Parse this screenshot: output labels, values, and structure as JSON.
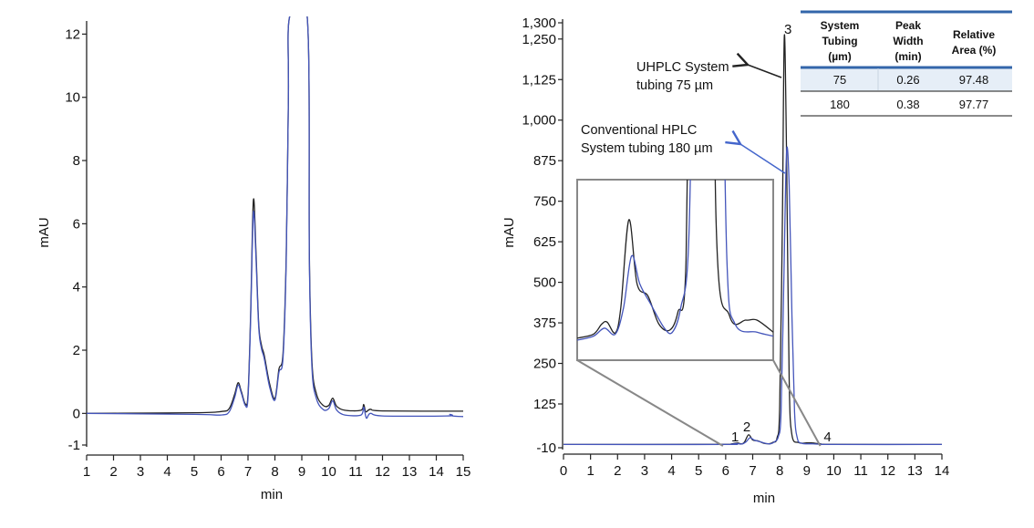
{
  "chart_data": [
    {
      "type": "line",
      "xlabel": "min",
      "ylabel": "mAU",
      "xlim": [
        1,
        15
      ],
      "ylim": [
        -1,
        12.3
      ],
      "xticks": [
        "1",
        "2",
        "3",
        "4",
        "5",
        "6",
        "7",
        "8",
        "9",
        "10",
        "11",
        "12",
        "13",
        "14",
        "15"
      ],
      "yticks": [
        "-1",
        "0",
        "2",
        "4",
        "6",
        "8",
        "10",
        "12"
      ],
      "grid": false,
      "series": [
        {
          "color": "#222222",
          "points": [
            [
              1,
              0
            ],
            [
              5,
              0.02
            ],
            [
              6,
              0.06
            ],
            [
              6.3,
              0.15
            ],
            [
              6.5,
              0.6
            ],
            [
              6.63,
              0.97
            ],
            [
              6.75,
              0.7
            ],
            [
              6.9,
              0.3
            ],
            [
              7.0,
              0.6
            ],
            [
              7.1,
              3.2
            ],
            [
              7.2,
              6.75
            ],
            [
              7.3,
              5.0
            ],
            [
              7.4,
              2.8
            ],
            [
              7.5,
              2.15
            ],
            [
              7.6,
              1.85
            ],
            [
              7.8,
              0.95
            ],
            [
              8.0,
              0.47
            ],
            [
              8.15,
              1.4
            ],
            [
              8.3,
              1.9
            ],
            [
              8.42,
              5
            ],
            [
              8.5,
              10
            ],
            [
              8.55,
              13
            ],
            [
              9.2,
              13
            ],
            [
              9.28,
              5
            ],
            [
              9.38,
              1.6
            ],
            [
              9.55,
              0.6
            ],
            [
              9.8,
              0.25
            ],
            [
              10.0,
              0.25
            ],
            [
              10.15,
              0.48
            ],
            [
              10.3,
              0.22
            ],
            [
              10.6,
              0.1
            ],
            [
              11.2,
              0.1
            ],
            [
              11.3,
              0.28
            ],
            [
              11.38,
              0.05
            ],
            [
              11.55,
              0.13
            ],
            [
              12,
              0.08
            ],
            [
              15,
              0.07
            ]
          ]
        },
        {
          "color": "#4455bb",
          "points": [
            [
              1,
              0
            ],
            [
              5,
              -0.03
            ],
            [
              6,
              -0.05
            ],
            [
              6.3,
              0.05
            ],
            [
              6.5,
              0.5
            ],
            [
              6.63,
              0.9
            ],
            [
              6.75,
              0.65
            ],
            [
              6.9,
              0.25
            ],
            [
              7.0,
              0.5
            ],
            [
              7.1,
              3.0
            ],
            [
              7.2,
              6.35
            ],
            [
              7.3,
              4.8
            ],
            [
              7.4,
              2.7
            ],
            [
              7.5,
              2.05
            ],
            [
              7.6,
              1.75
            ],
            [
              7.8,
              0.85
            ],
            [
              8.0,
              0.42
            ],
            [
              8.15,
              1.3
            ],
            [
              8.3,
              1.75
            ],
            [
              8.42,
              4.8
            ],
            [
              8.5,
              10
            ],
            [
              8.55,
              13
            ],
            [
              9.2,
              13
            ],
            [
              9.28,
              4.8
            ],
            [
              9.38,
              1.4
            ],
            [
              9.55,
              0.45
            ],
            [
              9.8,
              0.12
            ],
            [
              10.0,
              0.15
            ],
            [
              10.15,
              0.4
            ],
            [
              10.3,
              0.1
            ],
            [
              10.6,
              -0.05
            ],
            [
              11.2,
              -0.05
            ],
            [
              11.3,
              0.2
            ],
            [
              11.4,
              -0.15
            ],
            [
              11.55,
              0.0
            ],
            [
              12,
              -0.08
            ],
            [
              14.4,
              -0.08
            ],
            [
              14.5,
              -0.03
            ],
            [
              14.6,
              -0.08
            ],
            [
              15,
              -0.1
            ]
          ]
        }
      ]
    },
    {
      "type": "line",
      "xlabel": "min",
      "ylabel": "mAU",
      "xlim": [
        0,
        14
      ],
      "ylim": [
        -10,
        1300
      ],
      "xticks": [
        "0",
        "1",
        "2",
        "3",
        "4",
        "5",
        "6",
        "7",
        "8",
        "9",
        "10",
        "11",
        "12",
        "13",
        "14"
      ],
      "yticks": [
        "-10",
        "125",
        "250",
        "375",
        "500",
        "625",
        "750",
        "875",
        "1,000",
        "1,125",
        "1,250",
        "1,300"
      ],
      "grid": false,
      "series": [
        {
          "name": "UHPLC System tubing 75 µm",
          "color": "#222222",
          "points": [
            [
              0,
              0
            ],
            [
              5.9,
              0.5
            ],
            [
              6.2,
              1.5
            ],
            [
              6.35,
              4
            ],
            [
              6.45,
              4.5
            ],
            [
              6.6,
              1.8
            ],
            [
              6.7,
              8
            ],
            [
              6.85,
              30
            ],
            [
              7.0,
              14
            ],
            [
              7.2,
              11
            ],
            [
              7.4,
              4
            ],
            [
              7.6,
              2.5
            ],
            [
              7.75,
              7
            ],
            [
              7.9,
              20
            ],
            [
              8.0,
              120
            ],
            [
              8.1,
              700
            ],
            [
              8.17,
              1260
            ],
            [
              8.25,
              900
            ],
            [
              8.35,
              200
            ],
            [
              8.45,
              30
            ],
            [
              8.7,
              6
            ],
            [
              9.0,
              5
            ],
            [
              9.2,
              5
            ],
            [
              9.5,
              2
            ],
            [
              10,
              0.5
            ],
            [
              14,
              0
            ]
          ]
        },
        {
          "name": "Conventional HPLC System tubing 180 µm",
          "color": "#4455bb",
          "points": [
            [
              0,
              0
            ],
            [
              5.9,
              0
            ],
            [
              6.2,
              1
            ],
            [
              6.4,
              3
            ],
            [
              6.6,
              1.5
            ],
            [
              6.75,
              8
            ],
            [
              6.9,
              21
            ],
            [
              7.05,
              14
            ],
            [
              7.25,
              9
            ],
            [
              7.5,
              3
            ],
            [
              7.65,
              2
            ],
            [
              7.8,
              8
            ],
            [
              7.95,
              25
            ],
            [
              8.05,
              100
            ],
            [
              8.15,
              500
            ],
            [
              8.25,
              900
            ],
            [
              8.35,
              800
            ],
            [
              8.45,
              400
            ],
            [
              8.55,
              100
            ],
            [
              8.65,
              20
            ],
            [
              8.8,
              4
            ],
            [
              9.2,
              2
            ],
            [
              9.5,
              1
            ],
            [
              10,
              0
            ],
            [
              14,
              0
            ]
          ]
        }
      ],
      "inset": {
        "xlim": [
          5.9,
          9.5
        ],
        "ylim": [
          -5,
          40
        ]
      },
      "peak_labels": [
        {
          "text": "1",
          "x": 6.35
        },
        {
          "text": "2",
          "x": 6.85
        },
        {
          "text": "3",
          "x": 8.17
        },
        {
          "text": "4",
          "x": 9.5
        }
      ],
      "annotations": [
        {
          "lines": [
            "UHPLC System",
            "tubing 75 µm"
          ],
          "color": "#222222"
        },
        {
          "lines": [
            "Conventional HPLC",
            "System tubing 180 µm"
          ],
          "color": "#4466cc"
        }
      ]
    }
  ],
  "table": {
    "headers": [
      [
        "System",
        "Tubing",
        "(µm)"
      ],
      [
        "Peak",
        "Width",
        "(min)"
      ],
      [
        "Relative",
        "Area (%)"
      ]
    ],
    "rows": [
      [
        "75",
        "0.26",
        "97.48"
      ],
      [
        "180",
        "0.38",
        "97.77"
      ]
    ],
    "accent": "#3366aa",
    "highlight": "#e6eef7"
  }
}
